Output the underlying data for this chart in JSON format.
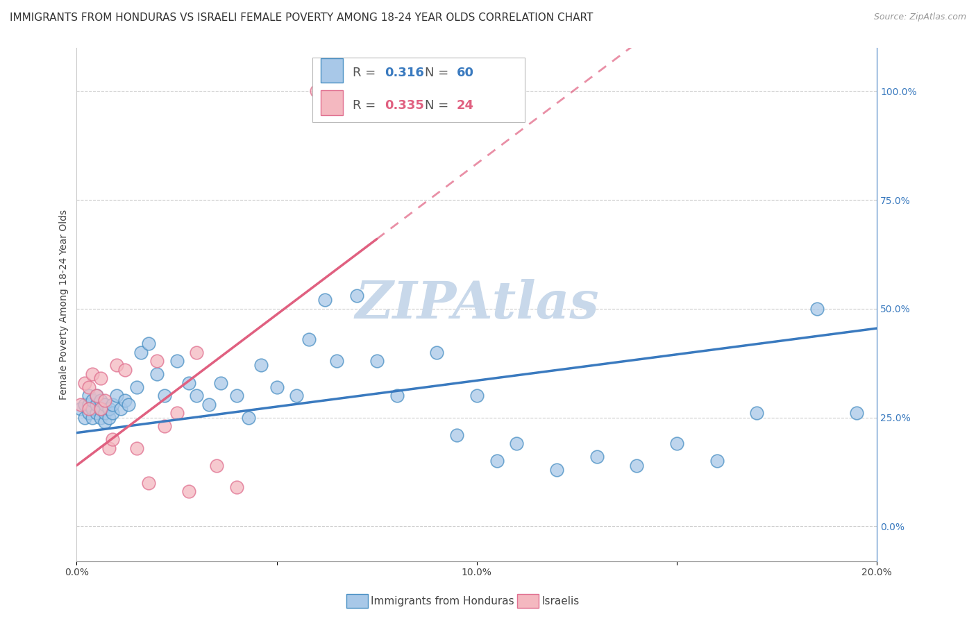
{
  "title": "IMMIGRANTS FROM HONDURAS VS ISRAELI FEMALE POVERTY AMONG 18-24 YEAR OLDS CORRELATION CHART",
  "source": "Source: ZipAtlas.com",
  "ylabel": "Female Poverty Among 18-24 Year Olds",
  "blue_R": 0.316,
  "blue_N": 60,
  "pink_R": 0.335,
  "pink_N": 24,
  "blue_label": "Immigrants from Honduras",
  "pink_label": "Israelis",
  "xlim": [
    0.0,
    0.2
  ],
  "ylim": [
    -0.08,
    1.1
  ],
  "xticks": [
    0.0,
    0.05,
    0.1,
    0.15,
    0.2
  ],
  "xtick_labels": [
    "0.0%",
    "",
    "10.0%",
    "",
    "20.0%"
  ],
  "yticks_right": [
    0.0,
    0.25,
    0.5,
    0.75,
    1.0
  ],
  "ytick_labels_right": [
    "0.0%",
    "25.0%",
    "50.0%",
    "75.0%",
    "100.0%"
  ],
  "blue_color": "#a8c8e8",
  "blue_edge": "#4a90c4",
  "pink_color": "#f4b8c0",
  "pink_edge": "#e07090",
  "blue_line_color": "#3a7abf",
  "pink_line_color": "#e06080",
  "watermark": "ZIPAtlas",
  "watermark_color": "#c8d8ea",
  "blue_x": [
    0.001,
    0.002,
    0.002,
    0.003,
    0.003,
    0.003,
    0.004,
    0.004,
    0.004,
    0.005,
    0.005,
    0.005,
    0.006,
    0.006,
    0.006,
    0.007,
    0.007,
    0.007,
    0.008,
    0.008,
    0.009,
    0.009,
    0.01,
    0.011,
    0.012,
    0.013,
    0.015,
    0.016,
    0.018,
    0.02,
    0.022,
    0.025,
    0.028,
    0.03,
    0.033,
    0.036,
    0.04,
    0.043,
    0.046,
    0.05,
    0.055,
    0.058,
    0.062,
    0.065,
    0.07,
    0.075,
    0.08,
    0.09,
    0.095,
    0.1,
    0.105,
    0.11,
    0.12,
    0.13,
    0.14,
    0.15,
    0.16,
    0.17,
    0.185,
    0.195
  ],
  "blue_y": [
    0.27,
    0.25,
    0.28,
    0.26,
    0.28,
    0.3,
    0.25,
    0.27,
    0.29,
    0.26,
    0.28,
    0.3,
    0.25,
    0.27,
    0.29,
    0.24,
    0.26,
    0.28,
    0.25,
    0.27,
    0.26,
    0.28,
    0.3,
    0.27,
    0.29,
    0.28,
    0.32,
    0.4,
    0.42,
    0.35,
    0.3,
    0.38,
    0.33,
    0.3,
    0.28,
    0.33,
    0.3,
    0.25,
    0.37,
    0.32,
    0.3,
    0.43,
    0.52,
    0.38,
    0.53,
    0.38,
    0.3,
    0.4,
    0.21,
    0.3,
    0.15,
    0.19,
    0.13,
    0.16,
    0.14,
    0.19,
    0.15,
    0.26,
    0.5,
    0.26
  ],
  "pink_x": [
    0.001,
    0.002,
    0.003,
    0.003,
    0.004,
    0.005,
    0.006,
    0.006,
    0.007,
    0.008,
    0.009,
    0.01,
    0.012,
    0.015,
    0.018,
    0.02,
    0.022,
    0.025,
    0.028,
    0.03,
    0.035,
    0.04,
    0.06,
    0.063
  ],
  "pink_y": [
    0.28,
    0.33,
    0.27,
    0.32,
    0.35,
    0.3,
    0.27,
    0.34,
    0.29,
    0.18,
    0.2,
    0.37,
    0.36,
    0.18,
    0.1,
    0.38,
    0.23,
    0.26,
    0.08,
    0.4,
    0.14,
    0.09,
    1.0,
    1.0
  ],
  "title_fontsize": 11,
  "axis_label_fontsize": 10,
  "tick_fontsize": 10,
  "legend_fontsize": 13
}
